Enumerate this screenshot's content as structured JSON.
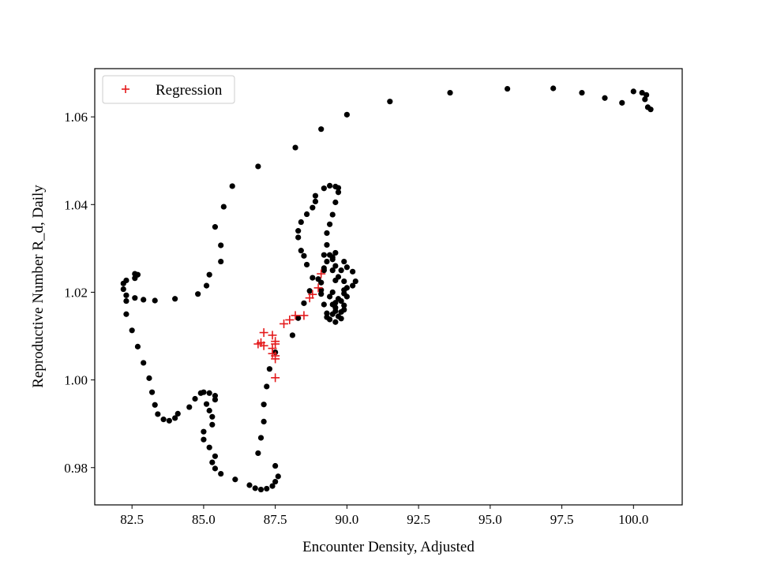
{
  "chart_data": {
    "type": "scatter",
    "title": "",
    "xlabel": "Encounter Density, Adjusted",
    "ylabel": "Reproductive Number R_d, Daily",
    "xlim": [
      81.2,
      101.7
    ],
    "ylim": [
      0.9715,
      1.071
    ],
    "xticks": [
      82.5,
      85.0,
      87.5,
      90.0,
      92.5,
      95.0,
      97.5,
      100.0
    ],
    "xtick_labels": [
      "82.5",
      "85.0",
      "87.5",
      "90.0",
      "92.5",
      "95.0",
      "97.5",
      "100.0"
    ],
    "yticks": [
      0.98,
      1.0,
      1.02,
      1.04,
      1.06
    ],
    "ytick_labels": [
      "0.98",
      "1.00",
      "1.02",
      "1.04",
      "1.06"
    ],
    "grid": false,
    "legend": {
      "placement": "top-left",
      "entries": [
        "Regression"
      ]
    },
    "series": [
      {
        "marker": "dot",
        "color": "#000000",
        "points": [
          [
            100.6,
            1.0617
          ],
          [
            100.5,
            1.0622
          ],
          [
            100.4,
            1.064
          ],
          [
            100.45,
            1.065
          ],
          [
            100.3,
            1.0655
          ],
          [
            100.0,
            1.0658
          ],
          [
            99.6,
            1.0632
          ],
          [
            99.0,
            1.0643
          ],
          [
            98.2,
            1.0655
          ],
          [
            97.2,
            1.0665
          ],
          [
            95.6,
            1.0664
          ],
          [
            93.6,
            1.0655
          ],
          [
            91.5,
            1.0635
          ],
          [
            90.0,
            1.0605
          ],
          [
            89.1,
            1.0572
          ],
          [
            88.2,
            1.053
          ],
          [
            86.9,
            1.0487
          ],
          [
            86.0,
            1.0442
          ],
          [
            85.7,
            1.0395
          ],
          [
            85.4,
            1.0349
          ],
          [
            85.6,
            1.0307
          ],
          [
            85.6,
            1.027
          ],
          [
            85.2,
            1.024
          ],
          [
            85.1,
            1.0215
          ],
          [
            84.8,
            1.0196
          ],
          [
            84.0,
            1.0185
          ],
          [
            83.3,
            1.0181
          ],
          [
            82.9,
            1.0183
          ],
          [
            82.6,
            1.0187
          ],
          [
            82.3,
            1.0193
          ],
          [
            82.2,
            1.0207
          ],
          [
            82.2,
            1.022
          ],
          [
            82.3,
            1.0227
          ],
          [
            82.6,
            1.0232
          ],
          [
            82.7,
            1.024
          ],
          [
            82.6,
            1.0242
          ],
          [
            82.3,
            1.018
          ],
          [
            82.3,
            1.015
          ],
          [
            82.5,
            1.0113
          ],
          [
            82.7,
            1.0076
          ],
          [
            82.9,
            1.0039
          ],
          [
            83.1,
            1.0004
          ],
          [
            83.2,
            0.9972
          ],
          [
            83.3,
            0.9943
          ],
          [
            83.4,
            0.9922
          ],
          [
            83.6,
            0.991
          ],
          [
            83.8,
            0.9907
          ],
          [
            84.0,
            0.9913
          ],
          [
            84.1,
            0.9923
          ],
          [
            84.5,
            0.9938
          ],
          [
            84.7,
            0.9957
          ],
          [
            84.9,
            0.997
          ],
          [
            85.0,
            0.9972
          ],
          [
            85.2,
            0.997
          ],
          [
            85.4,
            0.9964
          ],
          [
            85.4,
            0.9955
          ],
          [
            85.1,
            0.9945
          ],
          [
            85.2,
            0.993
          ],
          [
            85.3,
            0.9916
          ],
          [
            85.3,
            0.9898
          ],
          [
            85.0,
            0.9882
          ],
          [
            85.0,
            0.9864
          ],
          [
            85.2,
            0.9846
          ],
          [
            85.4,
            0.9826
          ],
          [
            85.3,
            0.9812
          ],
          [
            85.4,
            0.9798
          ],
          [
            85.6,
            0.9786
          ],
          [
            86.1,
            0.9773
          ],
          [
            86.6,
            0.976
          ],
          [
            86.8,
            0.9753
          ],
          [
            87.0,
            0.975
          ],
          [
            87.2,
            0.9752
          ],
          [
            87.4,
            0.9758
          ],
          [
            87.5,
            0.9768
          ],
          [
            87.6,
            0.978
          ],
          [
            87.5,
            0.9804
          ],
          [
            86.9,
            0.9833
          ],
          [
            87.0,
            0.9868
          ],
          [
            87.1,
            0.9905
          ],
          [
            87.1,
            0.9944
          ],
          [
            87.2,
            0.9985
          ],
          [
            87.3,
            1.0025
          ],
          [
            87.5,
            1.0063
          ],
          [
            88.1,
            1.0102
          ],
          [
            88.3,
            1.0141
          ],
          [
            88.5,
            1.0175
          ],
          [
            88.7,
            1.0203
          ],
          [
            88.8,
            1.0233
          ],
          [
            88.6,
            1.0263
          ],
          [
            88.4,
            1.0295
          ],
          [
            88.5,
            1.0283
          ],
          [
            88.3,
            1.0325
          ],
          [
            88.3,
            1.034
          ],
          [
            88.4,
            1.036
          ],
          [
            88.6,
            1.0378
          ],
          [
            88.8,
            1.0393
          ],
          [
            88.9,
            1.0407
          ],
          [
            88.9,
            1.042
          ],
          [
            89.2,
            1.0437
          ],
          [
            89.4,
            1.0443
          ],
          [
            89.6,
            1.0441
          ],
          [
            89.7,
            1.0438
          ],
          [
            89.7,
            1.0428
          ],
          [
            89.6,
            1.0405
          ],
          [
            89.5,
            1.0377
          ],
          [
            89.4,
            1.0355
          ],
          [
            89.3,
            1.0335
          ],
          [
            89.3,
            1.0308
          ],
          [
            89.2,
            1.0285
          ],
          [
            89.2,
            1.0255
          ],
          [
            89.0,
            1.023
          ],
          [
            89.1,
            1.0196
          ],
          [
            89.2,
            1.0172
          ],
          [
            89.3,
            1.0152
          ],
          [
            89.4,
            1.0138
          ],
          [
            89.6,
            1.0132
          ],
          [
            89.8,
            1.014
          ],
          [
            89.9,
            1.016
          ],
          [
            89.8,
            1.018
          ],
          [
            89.9,
            1.0205
          ],
          [
            89.9,
            1.0225
          ],
          [
            89.8,
            1.025
          ],
          [
            89.9,
            1.027
          ],
          [
            90.0,
            1.0257
          ],
          [
            90.2,
            1.0247
          ],
          [
            90.3,
            1.0225
          ],
          [
            90.2,
            1.0215
          ],
          [
            89.9,
            1.0197
          ],
          [
            89.7,
            1.0185
          ],
          [
            89.6,
            1.0165
          ],
          [
            89.5,
            1.015
          ],
          [
            89.3,
            1.0143
          ],
          [
            89.6,
            1.0176
          ],
          [
            89.5,
            1.02
          ],
          [
            89.6,
            1.0227
          ],
          [
            89.5,
            1.025
          ],
          [
            89.5,
            1.0275
          ],
          [
            89.6,
            1.029
          ],
          [
            89.4,
            1.0285
          ],
          [
            89.3,
            1.027
          ],
          [
            89.2,
            1.025
          ],
          [
            89.1,
            1.0222
          ],
          [
            89.1,
            1.0205
          ],
          [
            89.4,
            1.019
          ],
          [
            89.5,
            1.0172
          ],
          [
            89.6,
            1.0157
          ],
          [
            89.7,
            1.0145
          ],
          [
            89.8,
            1.0155
          ],
          [
            89.9,
            1.017
          ],
          [
            90.0,
            1.019
          ],
          [
            90.0,
            1.021
          ],
          [
            89.7,
            1.0235
          ],
          [
            89.6,
            1.026
          ],
          [
            89.5,
            1.028
          ]
        ]
      },
      {
        "name": "Regression",
        "marker": "plus",
        "color": "#e41a1c",
        "points": [
          [
            89.1,
            1.0242
          ],
          [
            89.0,
            1.021
          ],
          [
            88.8,
            1.0195
          ],
          [
            88.7,
            1.0187
          ],
          [
            88.5,
            1.0147
          ],
          [
            88.2,
            1.0147
          ],
          [
            88.0,
            1.0137
          ],
          [
            87.8,
            1.0128
          ],
          [
            87.4,
            1.0102
          ],
          [
            87.1,
            1.0108
          ],
          [
            87.5,
            1.0088
          ],
          [
            87.5,
            1.0082
          ],
          [
            87.4,
            1.0072
          ],
          [
            87.1,
            1.0078
          ],
          [
            86.9,
            1.0082
          ],
          [
            87.0,
            1.0085
          ],
          [
            87.4,
            1.006
          ],
          [
            87.5,
            1.0055
          ],
          [
            87.5,
            1.0048
          ],
          [
            87.5,
            1.0005
          ]
        ]
      }
    ]
  }
}
